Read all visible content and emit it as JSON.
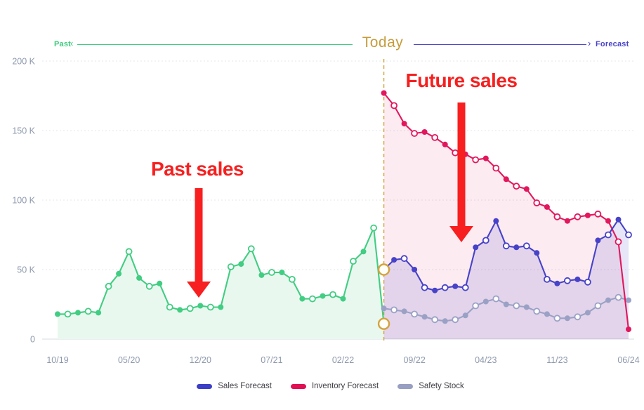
{
  "timeline": {
    "past_label": "Past",
    "today_label": "Today",
    "forecast_label": "Forecast",
    "past_color": "#3ecb7e",
    "today_color": "#c59c3b",
    "forecast_color": "#4a44c8"
  },
  "annotations": {
    "past_sales": "Past sales",
    "future_sales": "Future sales",
    "color": "#f71f1f"
  },
  "legend": {
    "items": [
      {
        "label": "Sales Forecast",
        "color": "#3c3fc5"
      },
      {
        "label": "Inventory Forecast",
        "color": "#e01055"
      },
      {
        "label": "Safety Stock",
        "color": "#989fc2"
      }
    ]
  },
  "chart_data": {
    "type": "line",
    "title": "",
    "xlabel": "",
    "ylabel": "",
    "ylim": [
      0,
      200
    ],
    "grid": "dashed-horizontal",
    "legend_position": "bottom-center",
    "months_total": 57,
    "x_labels": [
      "10/19",
      "05/20",
      "12/20",
      "07/21",
      "02/22",
      "09/22",
      "04/23",
      "11/23",
      "06/24"
    ],
    "x_label_month_indices": [
      0,
      7,
      14,
      21,
      28,
      35,
      42,
      49,
      56
    ],
    "y_ticks": [
      "200 K",
      "150 K",
      "100 K",
      "50 K",
      "0"
    ],
    "y_tick_values": [
      200,
      150,
      100,
      50,
      0
    ],
    "today_line": {
      "month_index": 32,
      "color": "#d4a33c",
      "marker_values_k": [
        50,
        11
      ]
    },
    "series": [
      {
        "name": "Sales History",
        "color": "#41cd82",
        "fill": "#e9f8ef",
        "start_month": 0,
        "filled_on": "even",
        "values": [
          18,
          18,
          19,
          20,
          19,
          38,
          47,
          63,
          44,
          38,
          40,
          23,
          21,
          22,
          24,
          23,
          23,
          52,
          54,
          65,
          46,
          48,
          48,
          43,
          29,
          29,
          31,
          32,
          29,
          56,
          63,
          80,
          11
        ]
      },
      {
        "name": "Inventory Forecast",
        "color": "#e2175d",
        "fill": "rgba(226,23,93,0.085)",
        "start_month": 32,
        "filled_on": "even",
        "values": [
          177,
          168,
          155,
          148,
          149,
          145,
          140,
          134,
          133,
          129,
          130,
          123,
          115,
          110,
          108,
          98,
          95,
          88,
          85,
          88,
          89,
          90,
          85,
          70,
          7
        ]
      },
      {
        "name": "Sales Forecast",
        "color": "#4742c8",
        "fill": "rgba(69,64,200,0.135)",
        "start_month": 32,
        "filled_on": "odd",
        "values": [
          50,
          57,
          58,
          50,
          37,
          35,
          37,
          38,
          37,
          66,
          71,
          85,
          67,
          66,
          67,
          62,
          43,
          40,
          42,
          43,
          41,
          71,
          75,
          86,
          75
        ]
      },
      {
        "name": "Safety Stock",
        "color": "#9aa1c5",
        "fill": null,
        "start_month": 32,
        "filled_on": "even",
        "values": [
          22,
          21,
          20,
          18,
          16,
          14,
          13,
          14,
          17,
          24,
          27,
          29,
          25,
          24,
          23,
          20,
          18,
          15,
          15,
          16,
          19,
          24,
          28,
          30,
          28
        ]
      }
    ]
  }
}
